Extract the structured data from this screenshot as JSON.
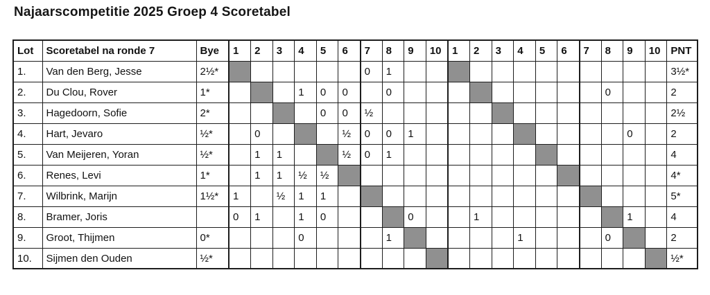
{
  "title": "Najaarscompetitie 2025 Groep 4 Scoretabel",
  "colors": {
    "diagonal_fill": "#909090",
    "border": "#1c1c1c",
    "text": "#111111",
    "background": "#ffffff"
  },
  "table": {
    "headers": {
      "lot": "Lot",
      "name": "Scoretabel na ronde 7",
      "bye": "Bye",
      "cycle1": [
        "1",
        "2",
        "3",
        "4",
        "5",
        "6",
        "7",
        "8",
        "9",
        "10"
      ],
      "cycle2": [
        "1",
        "2",
        "3",
        "4",
        "5",
        "6",
        "7",
        "8",
        "9",
        "10"
      ],
      "pnt": "PNT"
    },
    "rows": [
      {
        "lot": "1.",
        "name": "Van den Berg, Jesse",
        "bye": "2½*",
        "c1": [
          null,
          "",
          "",
          "",
          "",
          "",
          "0",
          "1",
          "",
          ""
        ],
        "c2": [
          null,
          "",
          "",
          "",
          "",
          "",
          "",
          "",
          "",
          ""
        ],
        "pnt": "3½*"
      },
      {
        "lot": "2.",
        "name": "Du Clou, Rover",
        "bye": "1*",
        "c1": [
          "",
          null,
          "",
          "1",
          "0",
          "0",
          "",
          "0",
          "",
          ""
        ],
        "c2": [
          "",
          null,
          "",
          "",
          "",
          "",
          "",
          "0",
          "",
          ""
        ],
        "pnt": "2"
      },
      {
        "lot": "3.",
        "name": "Hagedoorn, Sofie",
        "bye": "2*",
        "c1": [
          "",
          "",
          null,
          "",
          "0",
          "0",
          "½",
          "",
          "",
          ""
        ],
        "c2": [
          "",
          "",
          null,
          "",
          "",
          "",
          "",
          "",
          "",
          ""
        ],
        "pnt": "2½"
      },
      {
        "lot": "4.",
        "name": "Hart, Jevaro",
        "bye": "½*",
        "c1": [
          "",
          "0",
          "",
          null,
          "",
          "½",
          "0",
          "0",
          "1",
          ""
        ],
        "c2": [
          "",
          "",
          "",
          null,
          "",
          "",
          "",
          "",
          "0",
          ""
        ],
        "pnt": "2"
      },
      {
        "lot": "5.",
        "name": "Van Meijeren, Yoran",
        "bye": "½*",
        "c1": [
          "",
          "1",
          "1",
          "",
          null,
          "½",
          "0",
          "1",
          "",
          ""
        ],
        "c2": [
          "",
          "",
          "",
          "",
          null,
          "",
          "",
          "",
          "",
          ""
        ],
        "pnt": "4"
      },
      {
        "lot": "6.",
        "name": "Renes, Levi",
        "bye": "1*",
        "c1": [
          "",
          "1",
          "1",
          "½",
          "½",
          null,
          "",
          "",
          "",
          ""
        ],
        "c2": [
          "",
          "",
          "",
          "",
          "",
          null,
          "",
          "",
          "",
          ""
        ],
        "pnt": "4*"
      },
      {
        "lot": "7.",
        "name": "Wilbrink, Marijn",
        "bye": "1½*",
        "c1": [
          "1",
          "",
          "½",
          "1",
          "1",
          "",
          null,
          "",
          "",
          ""
        ],
        "c2": [
          "",
          "",
          "",
          "",
          "",
          "",
          null,
          "",
          "",
          ""
        ],
        "pnt": "5*"
      },
      {
        "lot": "8.",
        "name": "Bramer, Joris",
        "bye": "",
        "c1": [
          "0",
          "1",
          "",
          "1",
          "0",
          "",
          "",
          null,
          "0",
          ""
        ],
        "c2": [
          "",
          "1",
          "",
          "",
          "",
          "",
          "",
          null,
          "1",
          ""
        ],
        "pnt": "4"
      },
      {
        "lot": "9.",
        "name": "Groot, Thijmen",
        "bye": "0*",
        "c1": [
          "",
          "",
          "",
          "0",
          "",
          "",
          "",
          "1",
          null,
          ""
        ],
        "c2": [
          "",
          "",
          "",
          "1",
          "",
          "",
          "",
          "0",
          null,
          ""
        ],
        "pnt": "2"
      },
      {
        "lot": "10.",
        "name": "Sijmen den Ouden",
        "bye": "½*",
        "c1": [
          "",
          "",
          "",
          "",
          "",
          "",
          "",
          "",
          "",
          null
        ],
        "c2": [
          "",
          "",
          "",
          "",
          "",
          "",
          "",
          "",
          "",
          null
        ],
        "pnt": "½*"
      }
    ]
  }
}
